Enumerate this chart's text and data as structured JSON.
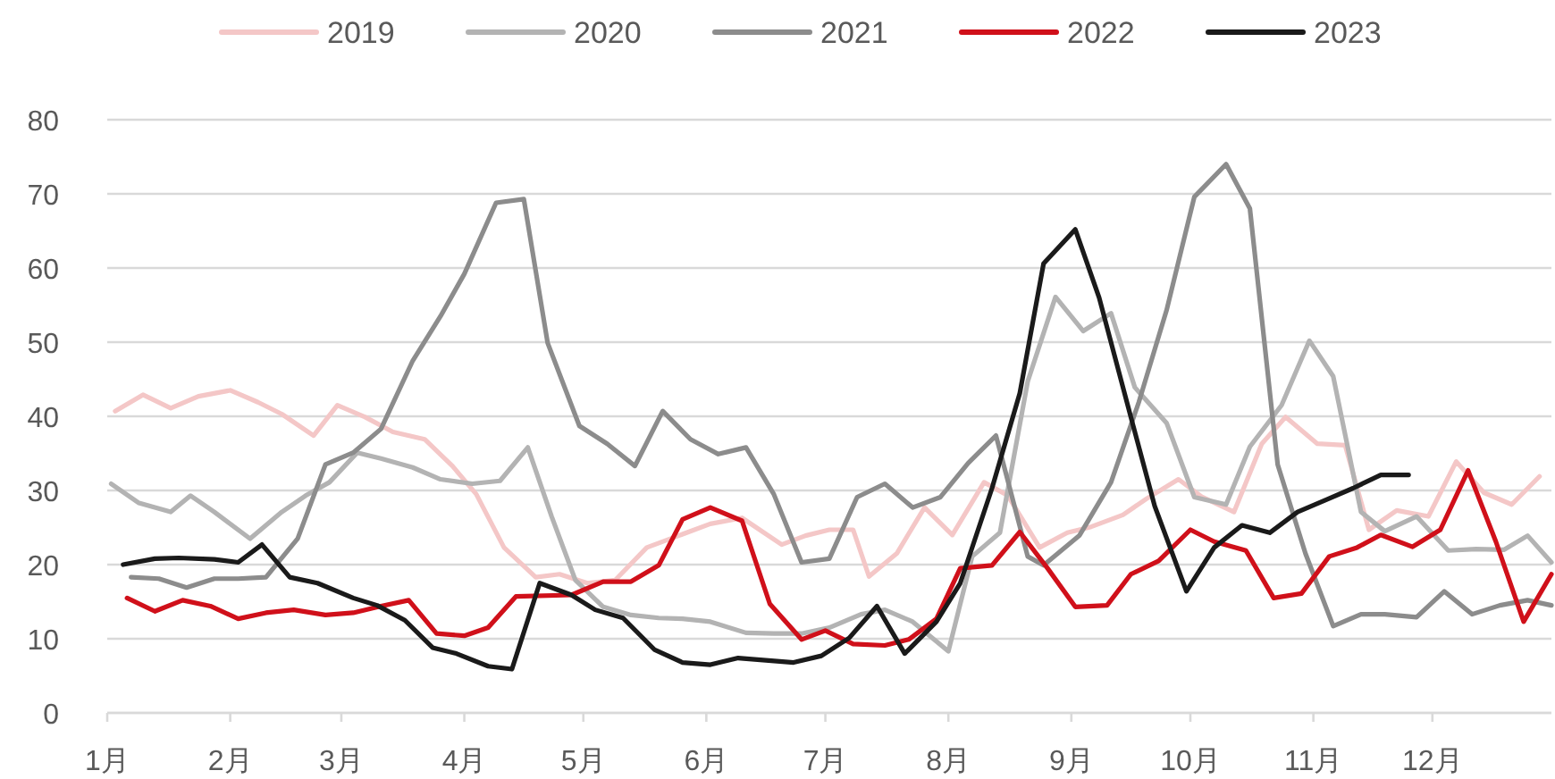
{
  "chart_data": {
    "type": "line",
    "xlim": [
      "--01-01",
      "--12-31"
    ],
    "xticks": [
      {
        "value": "--01-01",
        "label": "1月"
      },
      {
        "value": "--02-01",
        "label": "2月"
      },
      {
        "value": "--03-01",
        "label": "3月"
      },
      {
        "value": "--04-01",
        "label": "4月"
      },
      {
        "value": "--05-01",
        "label": "5月"
      },
      {
        "value": "--06-01",
        "label": "6月"
      },
      {
        "value": "--07-01",
        "label": "7月"
      },
      {
        "value": "--08-01",
        "label": "8月"
      },
      {
        "value": "--09-01",
        "label": "9月"
      },
      {
        "value": "--10-01",
        "label": "10月"
      },
      {
        "value": "--11-01",
        "label": "11月"
      },
      {
        "value": "--12-01",
        "label": "12月"
      }
    ],
    "ylim": [
      0,
      80
    ],
    "yticks": [
      0,
      10,
      20,
      30,
      40,
      50,
      60,
      70,
      80
    ],
    "grid": "y",
    "legend": "top",
    "marker": "none",
    "line_style": "solid",
    "series": [
      {
        "name": "2019",
        "color": "#f4c7c7",
        "x": [
          "--01-03",
          "--01-10",
          "--01-17",
          "--01-24",
          "--02-01",
          "--02-08",
          "--02-14",
          "--02-22",
          "--02-28",
          "--03-07",
          "--03-14",
          "--03-22",
          "--03-29",
          "--04-04",
          "--04-11",
          "--04-19",
          "--04-25",
          "--05-02",
          "--05-09",
          "--05-17",
          "--05-25",
          "--06-02",
          "--06-10",
          "--06-20",
          "--06-26",
          "--07-02",
          "--07-08",
          "--07-12",
          "--07-19",
          "--07-26",
          "--08-02",
          "--08-10",
          "--08-16",
          "--08-24",
          "--08-31",
          "--09-06",
          "--09-14",
          "--09-20",
          "--09-28",
          "--10-04",
          "--10-12",
          "--10-19",
          "--10-25",
          "--11-02",
          "--11-09",
          "--11-15",
          "--11-22",
          "--11-30",
          "--12-07",
          "--12-14",
          "--12-21",
          "--12-28"
        ],
        "values": [
          40.7,
          42.9,
          41.1,
          42.7,
          43.5,
          41.9,
          40.3,
          37.4,
          41.5,
          39.9,
          37.9,
          36.9,
          33.3,
          29.5,
          22.3,
          18.3,
          18.7,
          17.5,
          17.9,
          22.3,
          23.9,
          25.5,
          26.3,
          22.7,
          23.9,
          24.7,
          24.7,
          18.4,
          21.5,
          27.7,
          24.0,
          31.1,
          29.3,
          22.3,
          24.3,
          25.1,
          26.7,
          28.9,
          31.5,
          29.1,
          27.1,
          36.3,
          39.9,
          36.3,
          36.1,
          24.7,
          27.3,
          26.5,
          33.9,
          29.7,
          28.1,
          31.9
        ]
      },
      {
        "name": "2020",
        "color": "#b3b3b3",
        "x": [
          "--01-02",
          "--01-09",
          "--01-17",
          "--01-22",
          "--01-28",
          "--02-06",
          "--02-14",
          "--02-20",
          "--02-26",
          "--03-05",
          "--03-11",
          "--03-19",
          "--03-26",
          "--04-03",
          "--04-10",
          "--04-17",
          "--04-23",
          "--04-29",
          "--05-06",
          "--05-13",
          "--05-20",
          "--05-26",
          "--06-02",
          "--06-11",
          "--06-18",
          "--06-25",
          "--07-02",
          "--07-10",
          "--07-16",
          "--07-23",
          "--08-01",
          "--08-07",
          "--08-14",
          "--08-21",
          "--08-28",
          "--09-04",
          "--09-11",
          "--09-17",
          "--09-25",
          "--10-02",
          "--10-10",
          "--10-16",
          "--10-24",
          "--10-31",
          "--11-06",
          "--11-13",
          "--11-19",
          "--11-27",
          "--12-05",
          "--12-12",
          "--12-19",
          "--12-25",
          "--12-31"
        ],
        "values": [
          30.9,
          28.3,
          27.1,
          29.3,
          27.1,
          23.5,
          27.1,
          29.3,
          31.1,
          35.1,
          34.3,
          33.1,
          31.5,
          30.9,
          31.3,
          35.8,
          26.5,
          17.9,
          14.3,
          13.2,
          12.8,
          12.7,
          12.3,
          10.8,
          10.7,
          10.7,
          11.5,
          13.3,
          13.9,
          12.3,
          8.3,
          21.1,
          24.3,
          44.7,
          56.1,
          51.5,
          53.9,
          43.9,
          39.1,
          29.1,
          28.1,
          35.9,
          41.5,
          50.2,
          45.4,
          27.1,
          24.5,
          26.5,
          21.9,
          22.1,
          22.0,
          23.9,
          20.3
        ]
      },
      {
        "name": "2021",
        "color": "#8c8c8c",
        "x": [
          "--01-07",
          "--01-14",
          "--01-21",
          "--01-28",
          "--02-03",
          "--02-10",
          "--02-18",
          "--02-25",
          "--03-04",
          "--03-11",
          "--03-19",
          "--03-26",
          "--04-01",
          "--04-09",
          "--04-16",
          "--04-22",
          "--04-30",
          "--05-07",
          "--05-14",
          "--05-21",
          "--05-28",
          "--06-04",
          "--06-11",
          "--06-18",
          "--06-25",
          "--07-02",
          "--07-09",
          "--07-16",
          "--07-23",
          "--07-30",
          "--08-06",
          "--08-13",
          "--08-21",
          "--08-25",
          "--09-03",
          "--09-11",
          "--09-18",
          "--09-25",
          "--10-02",
          "--10-10",
          "--10-16",
          "--10-23",
          "--10-30",
          "--11-06",
          "--11-13",
          "--11-19",
          "--11-27",
          "--12-04",
          "--12-11",
          "--12-18",
          "--12-25",
          "--12-31"
        ],
        "values": [
          18.3,
          18.1,
          16.9,
          18.1,
          18.1,
          18.3,
          23.5,
          33.5,
          35.1,
          38.3,
          47.5,
          53.5,
          59.2,
          68.8,
          69.3,
          49.9,
          38.7,
          36.3,
          33.3,
          40.7,
          36.9,
          34.9,
          35.8,
          29.5,
          20.3,
          20.8,
          29.1,
          30.9,
          27.7,
          29.1,
          33.7,
          37.4,
          21.1,
          19.9,
          23.9,
          31.1,
          41.9,
          54.3,
          69.6,
          74.0,
          68.0,
          33.5,
          21.5,
          11.7,
          13.3,
          13.3,
          12.9,
          16.4,
          13.3,
          14.5,
          15.2,
          14.5
        ]
      },
      {
        "name": "2022",
        "color": "#d0101a",
        "x": [
          "--01-06",
          "--01-13",
          "--01-20",
          "--01-27",
          "--02-03",
          "--02-10",
          "--02-17",
          "--02-25",
          "--03-04",
          "--03-11",
          "--03-18",
          "--03-25",
          "--04-01",
          "--04-07",
          "--04-14",
          "--04-28",
          "--05-06",
          "--05-13",
          "--05-20",
          "--05-26",
          "--06-02",
          "--06-10",
          "--06-17",
          "--06-25",
          "--07-01",
          "--07-08",
          "--07-16",
          "--07-22",
          "--07-29",
          "--08-04",
          "--08-12",
          "--08-19",
          "--08-26",
          "--09-02",
          "--09-10",
          "--09-16",
          "--09-23",
          "--10-01",
          "--10-07",
          "--10-15",
          "--10-22",
          "--10-29",
          "--11-05",
          "--11-12",
          "--11-18",
          "--11-26",
          "--12-03",
          "--12-10",
          "--12-17",
          "--12-24",
          "--12-31"
        ],
        "values": [
          15.5,
          13.7,
          15.2,
          14.4,
          12.7,
          13.5,
          13.9,
          13.2,
          13.5,
          14.4,
          15.2,
          10.7,
          10.4,
          11.5,
          15.7,
          15.9,
          17.7,
          17.7,
          19.9,
          26.1,
          27.7,
          25.9,
          14.7,
          9.9,
          11.1,
          9.3,
          9.1,
          9.9,
          12.7,
          19.5,
          19.9,
          24.4,
          19.5,
          14.3,
          14.5,
          18.7,
          20.5,
          24.7,
          23.1,
          21.9,
          15.5,
          16.1,
          21.1,
          22.3,
          24.0,
          22.4,
          24.7,
          32.7,
          23.1,
          12.3,
          18.7
        ]
      },
      {
        "name": "2023",
        "color": "#1a1a1a",
        "x": [
          "--01-05",
          "--01-13",
          "--01-19",
          "--01-28",
          "--02-03",
          "--02-09",
          "--02-16",
          "--02-23",
          "--03-04",
          "--03-10",
          "--03-17",
          "--03-24",
          "--03-30",
          "--04-07",
          "--04-13",
          "--04-20",
          "--04-28",
          "--05-04",
          "--05-11",
          "--05-19",
          "--05-26",
          "--06-02",
          "--06-09",
          "--06-16",
          "--06-23",
          "--06-30",
          "--07-07",
          "--07-14",
          "--07-21",
          "--07-29",
          "--08-04",
          "--08-12",
          "--08-19",
          "--08-25",
          "--09-02",
          "--09-08",
          "--09-16",
          "--09-22",
          "--09-30",
          "--10-07",
          "--10-14",
          "--10-21",
          "--10-28",
          "--11-04",
          "--11-11",
          "--11-18",
          "--11-25"
        ],
        "values": [
          20.0,
          20.8,
          20.9,
          20.7,
          20.3,
          22.7,
          18.3,
          17.5,
          15.5,
          14.5,
          12.5,
          8.8,
          8.0,
          6.3,
          5.9,
          17.5,
          15.9,
          13.9,
          12.8,
          8.5,
          6.8,
          6.5,
          7.4,
          7.1,
          6.8,
          7.7,
          10.1,
          14.4,
          8.0,
          12.3,
          17.5,
          30.3,
          43.1,
          60.6,
          65.2,
          56.0,
          39.9,
          27.9,
          16.4,
          22.3,
          25.3,
          24.3,
          27.1,
          28.7,
          30.3,
          32.1,
          32.1
        ]
      }
    ]
  }
}
